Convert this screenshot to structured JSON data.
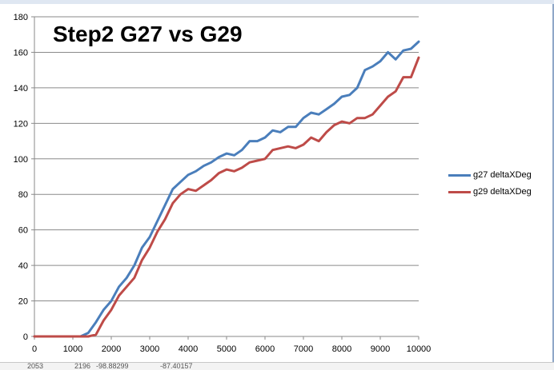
{
  "footer_cells": [
    "2053",
    "2196",
    "-98.88299",
    "-87.40157"
  ],
  "chart_data": {
    "type": "line",
    "title": "Step2 G27 vs G29",
    "xlabel": "",
    "ylabel": "",
    "xlim": [
      0,
      10000
    ],
    "ylim": [
      0,
      180
    ],
    "xticks": [
      "0",
      "1000",
      "2000",
      "3000",
      "4000",
      "5000",
      "6000",
      "7000",
      "8000",
      "9000",
      "10000"
    ],
    "yticks": [
      "0",
      "20",
      "40",
      "60",
      "80",
      "100",
      "120",
      "140",
      "160",
      "180"
    ],
    "grid": "horizontal",
    "legend_position": "right",
    "x": [
      0,
      200,
      400,
      600,
      800,
      1000,
      1200,
      1400,
      1600,
      1800,
      2000,
      2200,
      2400,
      2600,
      2800,
      3000,
      3200,
      3400,
      3600,
      3800,
      4000,
      4200,
      4400,
      4600,
      4800,
      5000,
      5200,
      5400,
      5600,
      5800,
      6000,
      6200,
      6400,
      6600,
      6800,
      7000,
      7200,
      7400,
      7600,
      7800,
      8000,
      8200,
      8400,
      8600,
      8800,
      9000,
      9200,
      9400,
      9600,
      9800,
      10000
    ],
    "series": [
      {
        "name": "g27 deltaXDeg",
        "color": "#4a7ebb",
        "values": [
          0,
          0,
          0,
          0,
          0,
          0,
          0,
          2,
          8,
          15,
          20,
          28,
          33,
          40,
          50,
          56,
          65,
          74,
          83,
          87,
          91,
          93,
          96,
          98,
          101,
          103,
          102,
          105,
          110,
          110,
          112,
          116,
          115,
          118,
          118,
          123,
          126,
          125,
          128,
          131,
          135,
          136,
          140,
          150,
          152,
          155,
          160,
          156,
          161,
          162,
          166
        ]
      },
      {
        "name": "g29 deltaXDeg",
        "color": "#be4b48",
        "values": [
          0,
          0,
          0,
          0,
          0,
          0,
          0,
          0,
          1,
          9,
          15,
          23,
          28,
          33,
          43,
          50,
          59,
          66,
          75,
          80,
          83,
          82,
          85,
          88,
          92,
          94,
          93,
          95,
          98,
          99,
          100,
          105,
          106,
          107,
          106,
          108,
          112,
          110,
          115,
          119,
          121,
          120,
          123,
          123,
          125,
          130,
          135,
          138,
          146,
          146,
          157
        ]
      }
    ]
  }
}
